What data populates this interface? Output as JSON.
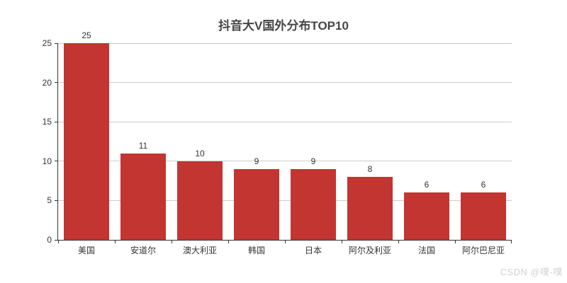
{
  "watermark": "CSDN @噗-噗",
  "colors": {
    "bar": "#c23531",
    "title": "#464646",
    "axis_line": "#333333",
    "axis_label": "#333333",
    "gridline": "#cccccc",
    "value_label": "#333333",
    "watermark": "#d2d2d2",
    "background": "#ffffff"
  },
  "chart_data": {
    "type": "bar",
    "title": "抖音大V国外分布TOP10",
    "categories": [
      "美国",
      "安道尔",
      "澳大利亚",
      "韩国",
      "日本",
      "阿尔及利亚",
      "法国",
      "阿尔巴尼亚"
    ],
    "values": [
      25,
      11,
      10,
      9,
      9,
      8,
      6,
      6
    ],
    "xlabel": "",
    "ylabel": "",
    "ylim": [
      0,
      25
    ],
    "yticks": [
      0,
      5,
      10,
      15,
      20,
      25
    ],
    "grid": true,
    "legend": false,
    "bar_color": "#c23531",
    "bar_width_fraction": 0.8,
    "value_labels_shown": true
  }
}
